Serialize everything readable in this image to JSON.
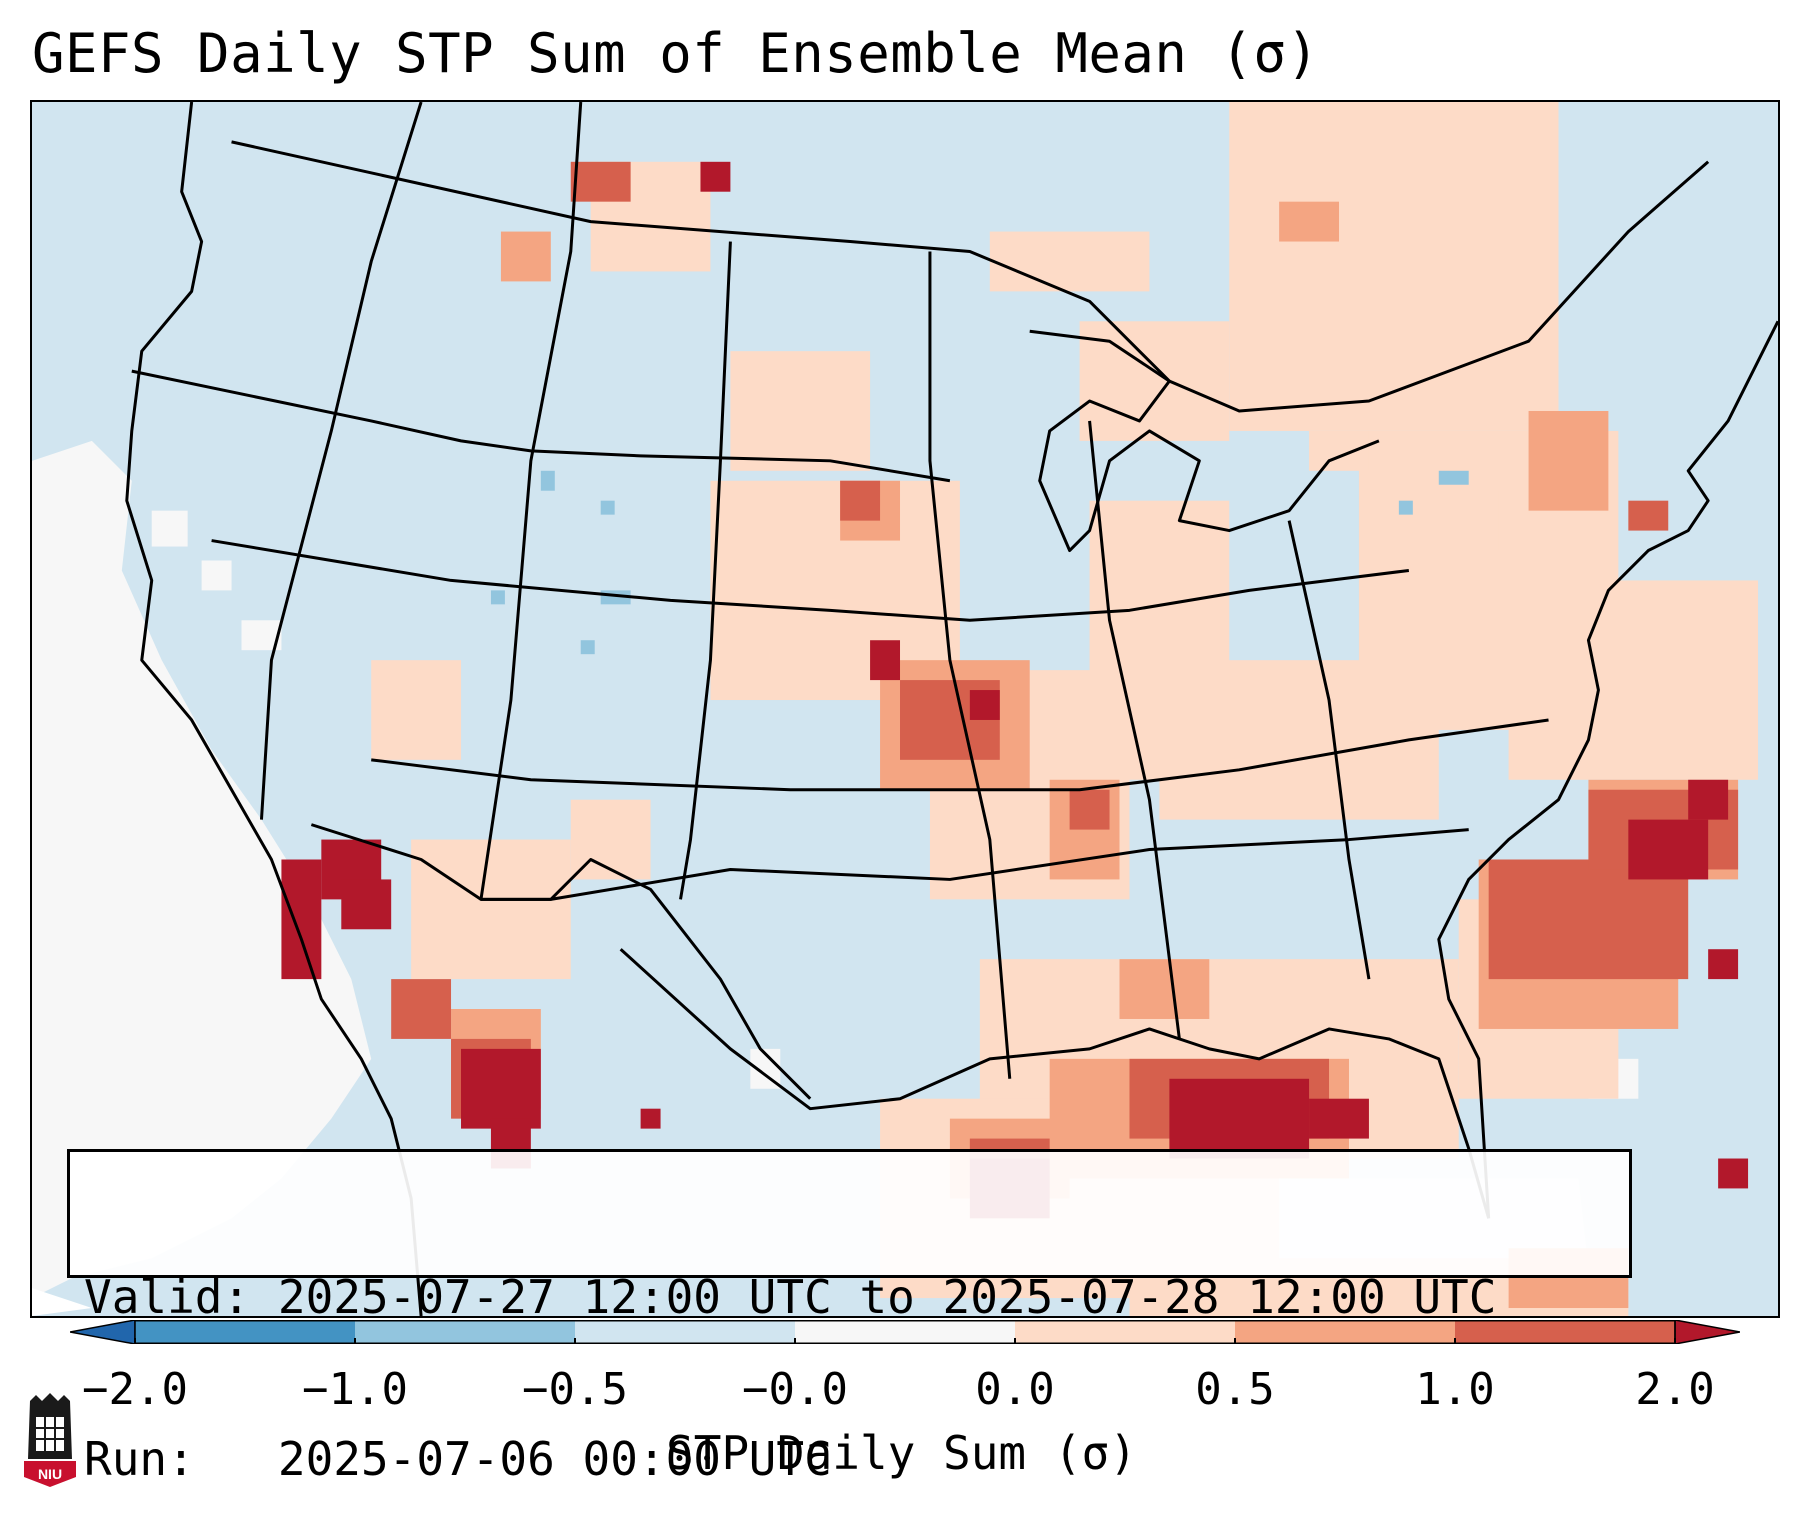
{
  "title": "GEFS Daily STP Sum of Ensemble Mean (σ)",
  "info": {
    "valid_label": "Valid:",
    "valid_value": "2025-07-27 12:00 UTC to 2025-07-28 12:00 UTC",
    "run_label": "Run:",
    "run_value": "2025-07-06 00:00 UTC"
  },
  "colorbar": {
    "label": "STP Daily Sum (σ)",
    "ticks": [
      "−2.0",
      "−1.0",
      "−0.5",
      "−0.0",
      "0.0",
      "0.5",
      "1.0",
      "2.0"
    ],
    "bins": [
      {
        "range": "< -2.0",
        "color": "#2166ac"
      },
      {
        "range": "-2.0 to -1.0",
        "color": "#4393c3"
      },
      {
        "range": "-1.0 to -0.5",
        "color": "#92c5de"
      },
      {
        "range": "-0.5 to -0.0",
        "color": "#d1e5f0"
      },
      {
        "range": "-0.0 to 0.0",
        "color": "#f7f7f7"
      },
      {
        "range": "0.0 to 0.5",
        "color": "#fddbc7"
      },
      {
        "range": "0.5 to 1.0",
        "color": "#f4a582"
      },
      {
        "range": "1.0 to 2.0",
        "color": "#d6604d"
      },
      {
        "range": "> 2.0",
        "color": "#b2182b"
      }
    ]
  },
  "logo": {
    "text": "NIU",
    "color": "#c8102e"
  }
}
